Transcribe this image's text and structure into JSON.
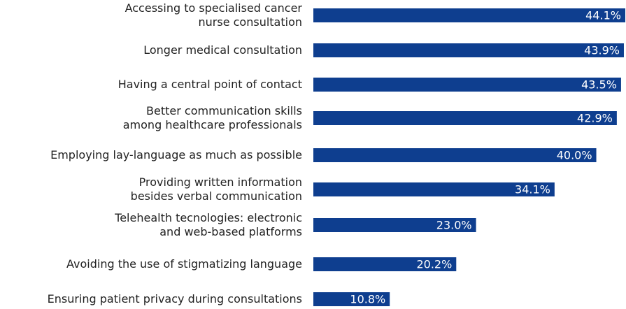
{
  "chart_data": {
    "type": "bar",
    "orientation": "horizontal",
    "color": "#0e3e8f",
    "categories": [
      "Accessing to specialised cancer\nnurse consultation",
      "Longer medical consultation",
      "Having a central point of contact",
      "Better communication skills\namong healthcare professionals",
      "Employing lay-language as much as possible",
      "Providing written information\nbesides verbal communication",
      "Telehealth tecnologies: electronic\nand web-based platforms",
      "Avoiding the use of stigmatizing language",
      "Ensuring patient privacy during consultations"
    ],
    "values": [
      44.1,
      43.9,
      43.5,
      42.9,
      40.0,
      34.1,
      23.0,
      20.2,
      10.8
    ],
    "value_labels": [
      "44.1%",
      "43.9%",
      "43.5%",
      "42.9%",
      "40.0%",
      "34.1%",
      "23.0%",
      "20.2%",
      "10.8%"
    ]
  }
}
